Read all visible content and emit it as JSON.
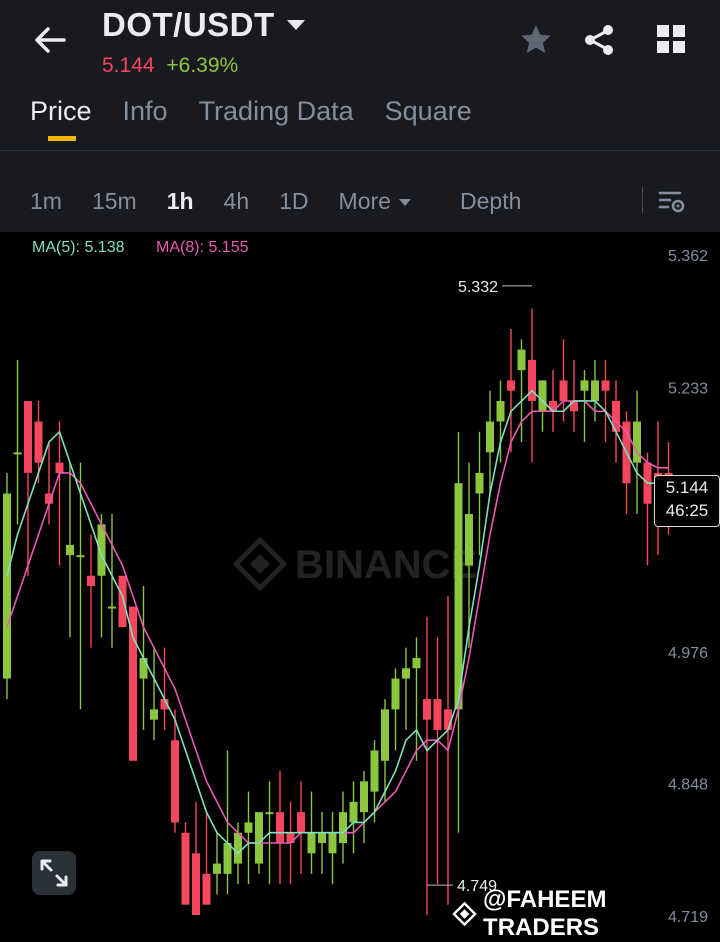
{
  "header": {
    "pair": "DOT/USDT",
    "last_price": "5.144",
    "change": "+6.39%",
    "icons": [
      "back-arrow-icon",
      "star-icon",
      "share-icon",
      "grid-icon"
    ]
  },
  "tabs": [
    {
      "label": "Price",
      "active": true
    },
    {
      "label": "Info",
      "active": false
    },
    {
      "label": "Trading Data",
      "active": false
    },
    {
      "label": "Square",
      "active": false
    }
  ],
  "intervals": [
    {
      "label": "1m",
      "active": false
    },
    {
      "label": "15m",
      "active": false
    },
    {
      "label": "1h",
      "active": true
    },
    {
      "label": "4h",
      "active": false
    },
    {
      "label": "1D",
      "active": false
    }
  ],
  "more_label": "More",
  "depth_label": "Depth",
  "indicators": {
    "ma5": "MA(5): 5.138",
    "ma8": "MA(8): 5.155"
  },
  "countdown": {
    "price": "5.144",
    "time": "46:25"
  },
  "watermark": {
    "logo_text": "BINANCE",
    "credit": "@FAHEEM TRADERS"
  },
  "colors": {
    "up": "#8cc63f",
    "down": "#f6465d",
    "ma5": "#7fe0c0",
    "ma8": "#e85ab4",
    "accent": "#f0b90b"
  },
  "chart_data": {
    "type": "candlestick",
    "y_ticks": [
      "5.362",
      "5.233",
      "4.976",
      "4.848",
      "4.719"
    ],
    "ylim": [
      4.719,
      5.362
    ],
    "high_label": "5.332",
    "low_label": "4.749",
    "candles": [
      [
        4.95,
        5.15,
        5.13,
        4.93
      ],
      [
        5.17,
        5.26,
        5.17,
        5.1
      ],
      [
        5.22,
        5.22,
        5.15,
        5.05
      ],
      [
        5.2,
        5.22,
        5.16,
        5.14
      ],
      [
        5.13,
        5.18,
        5.12,
        5.1
      ],
      [
        5.16,
        5.2,
        5.15,
        5.06
      ],
      [
        5.07,
        5.16,
        5.08,
        4.99
      ],
      [
        5.07,
        5.16,
        5.07,
        4.92
      ],
      [
        5.05,
        5.09,
        5.04,
        4.98
      ],
      [
        5.05,
        5.11,
        5.1,
        4.99
      ],
      [
        5.02,
        5.11,
        5.02,
        4.98
      ],
      [
        5.05,
        5.05,
        5.0,
        5.0
      ],
      [
        5.02,
        5.02,
        4.87,
        4.93
      ],
      [
        4.95,
        5.04,
        4.97,
        4.9
      ],
      [
        4.91,
        4.98,
        4.92,
        4.89
      ],
      [
        4.93,
        4.98,
        4.92,
        4.9
      ],
      [
        4.89,
        4.92,
        4.81,
        4.8
      ],
      [
        4.8,
        4.81,
        4.73,
        4.75
      ],
      [
        4.78,
        4.83,
        4.72,
        4.74
      ],
      [
        4.76,
        4.82,
        4.73,
        4.74
      ],
      [
        4.76,
        4.8,
        4.77,
        4.74
      ],
      [
        4.76,
        4.88,
        4.79,
        4.74
      ],
      [
        4.77,
        4.81,
        4.8,
        4.75
      ],
      [
        4.8,
        4.84,
        4.81,
        4.75
      ],
      [
        4.77,
        4.8,
        4.82,
        4.76
      ],
      [
        4.82,
        4.85,
        4.82,
        4.75
      ],
      [
        4.82,
        4.86,
        4.79,
        4.75
      ],
      [
        4.8,
        4.83,
        4.79,
        4.75
      ],
      [
        4.82,
        4.85,
        4.8,
        4.76
      ],
      [
        4.78,
        4.84,
        4.8,
        4.76
      ],
      [
        4.79,
        4.82,
        4.8,
        4.76
      ],
      [
        4.78,
        4.82,
        4.8,
        4.75
      ],
      [
        4.79,
        4.84,
        4.82,
        4.77
      ],
      [
        4.81,
        4.85,
        4.83,
        4.78
      ],
      [
        4.82,
        4.86,
        4.85,
        4.79
      ],
      [
        4.84,
        4.89,
        4.88,
        4.81
      ],
      [
        4.87,
        4.93,
        4.92,
        4.83
      ],
      [
        4.92,
        4.96,
        4.95,
        4.88
      ],
      [
        4.95,
        4.98,
        4.96,
        4.9
      ],
      [
        4.96,
        4.99,
        4.97,
        4.87
      ],
      [
        4.93,
        5.01,
        4.91,
        4.72
      ],
      [
        4.93,
        4.99,
        4.9,
        4.75
      ],
      [
        4.92,
        5.03,
        4.9,
        4.73
      ],
      [
        4.92,
        5.19,
        5.14,
        4.8
      ],
      [
        5.06,
        5.16,
        5.11,
        4.98
      ],
      [
        5.13,
        5.19,
        5.15,
        5.07
      ],
      [
        5.17,
        5.23,
        5.2,
        5.13
      ],
      [
        5.2,
        5.24,
        5.22,
        5.16
      ],
      [
        5.24,
        5.29,
        5.23,
        5.17
      ],
      [
        5.25,
        5.28,
        5.27,
        5.18
      ],
      [
        5.26,
        5.31,
        5.22,
        5.16
      ],
      [
        5.21,
        5.24,
        5.24,
        5.19
      ],
      [
        5.22,
        5.25,
        5.21,
        5.19
      ],
      [
        5.24,
        5.28,
        5.22,
        5.2
      ],
      [
        5.22,
        5.26,
        5.21,
        5.19
      ],
      [
        5.23,
        5.25,
        5.24,
        5.18
      ],
      [
        5.22,
        5.26,
        5.24,
        5.2
      ],
      [
        5.24,
        5.26,
        5.23,
        5.18
      ],
      [
        5.22,
        5.24,
        5.19,
        5.16
      ],
      [
        5.2,
        5.21,
        5.14,
        5.11
      ],
      [
        5.16,
        5.23,
        5.2,
        5.11
      ],
      [
        5.16,
        5.17,
        5.12,
        5.06
      ],
      [
        5.15,
        5.2,
        5.14,
        5.07
      ],
      [
        5.15,
        5.18,
        5.14,
        5.09
      ]
    ],
    "ma5": [
      5.05,
      5.09,
      5.12,
      5.15,
      5.18,
      5.19,
      5.16,
      5.13,
      5.1,
      5.07,
      5.05,
      5.03,
      4.99,
      4.97,
      4.95,
      4.93,
      4.91,
      4.88,
      4.85,
      4.82,
      4.8,
      4.79,
      4.78,
      4.79,
      4.79,
      4.8,
      4.8,
      4.8,
      4.8,
      4.8,
      4.8,
      4.8,
      4.8,
      4.81,
      4.81,
      4.82,
      4.84,
      4.86,
      4.89,
      4.9,
      4.88,
      4.89,
      4.9,
      4.93,
      5.0,
      5.06,
      5.13,
      5.18,
      5.21,
      5.22,
      5.23,
      5.22,
      5.21,
      5.21,
      5.22,
      5.22,
      5.22,
      5.21,
      5.19,
      5.17,
      5.15,
      5.14,
      5.14,
      5.138
    ],
    "ma8": [
      5.0,
      5.03,
      5.06,
      5.09,
      5.12,
      5.15,
      5.15,
      5.14,
      5.12,
      5.1,
      5.08,
      5.06,
      5.03,
      5.0,
      4.98,
      4.96,
      4.94,
      4.91,
      4.88,
      4.85,
      4.83,
      4.81,
      4.8,
      4.79,
      4.79,
      4.79,
      4.79,
      4.79,
      4.8,
      4.8,
      4.8,
      4.8,
      4.8,
      4.8,
      4.81,
      4.82,
      4.83,
      4.84,
      4.86,
      4.88,
      4.89,
      4.89,
      4.88,
      4.92,
      4.97,
      5.03,
      5.09,
      5.14,
      5.18,
      5.2,
      5.21,
      5.21,
      5.21,
      5.22,
      5.22,
      5.22,
      5.21,
      5.21,
      5.2,
      5.19,
      5.17,
      5.16,
      5.155,
      5.155
    ]
  }
}
